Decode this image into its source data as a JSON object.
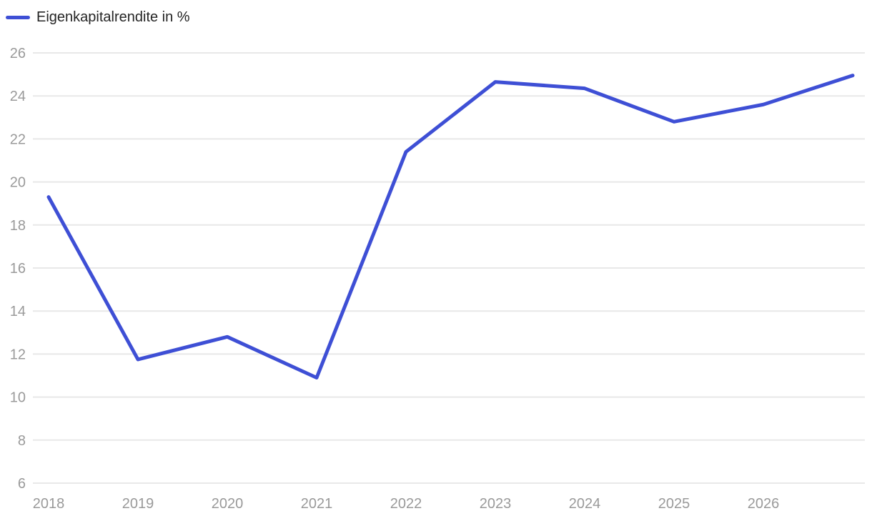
{
  "legend": {
    "label": "Eigenkapitalrendite in %"
  },
  "colors": {
    "line": "#3e4fd5",
    "grid": "#e8e8e8",
    "tick_label": "#9a9a9a",
    "legend_text": "#242424",
    "background": "#ffffff"
  },
  "chart_data": {
    "type": "line",
    "title": "",
    "xlabel": "",
    "ylabel": "Eigenkapitalrendite in %",
    "grid": true,
    "legend_position": "top-left",
    "x": [
      2018,
      2019,
      2020,
      2021,
      2022,
      2023,
      2024,
      2025,
      2026,
      2027
    ],
    "series": [
      {
        "name": "Eigenkapitalrendite in %",
        "values": [
          19.3,
          11.75,
          12.8,
          10.9,
          21.4,
          24.65,
          24.35,
          22.8,
          23.6,
          24.95
        ]
      }
    ],
    "x_tick_labels": [
      "2018",
      "2019",
      "2020",
      "2021",
      "2022",
      "2023",
      "2024",
      "2025",
      "2026"
    ],
    "y_ticks": [
      6,
      8,
      10,
      12,
      14,
      16,
      18,
      20,
      22,
      24,
      26
    ],
    "ylim": [
      6,
      26
    ]
  }
}
